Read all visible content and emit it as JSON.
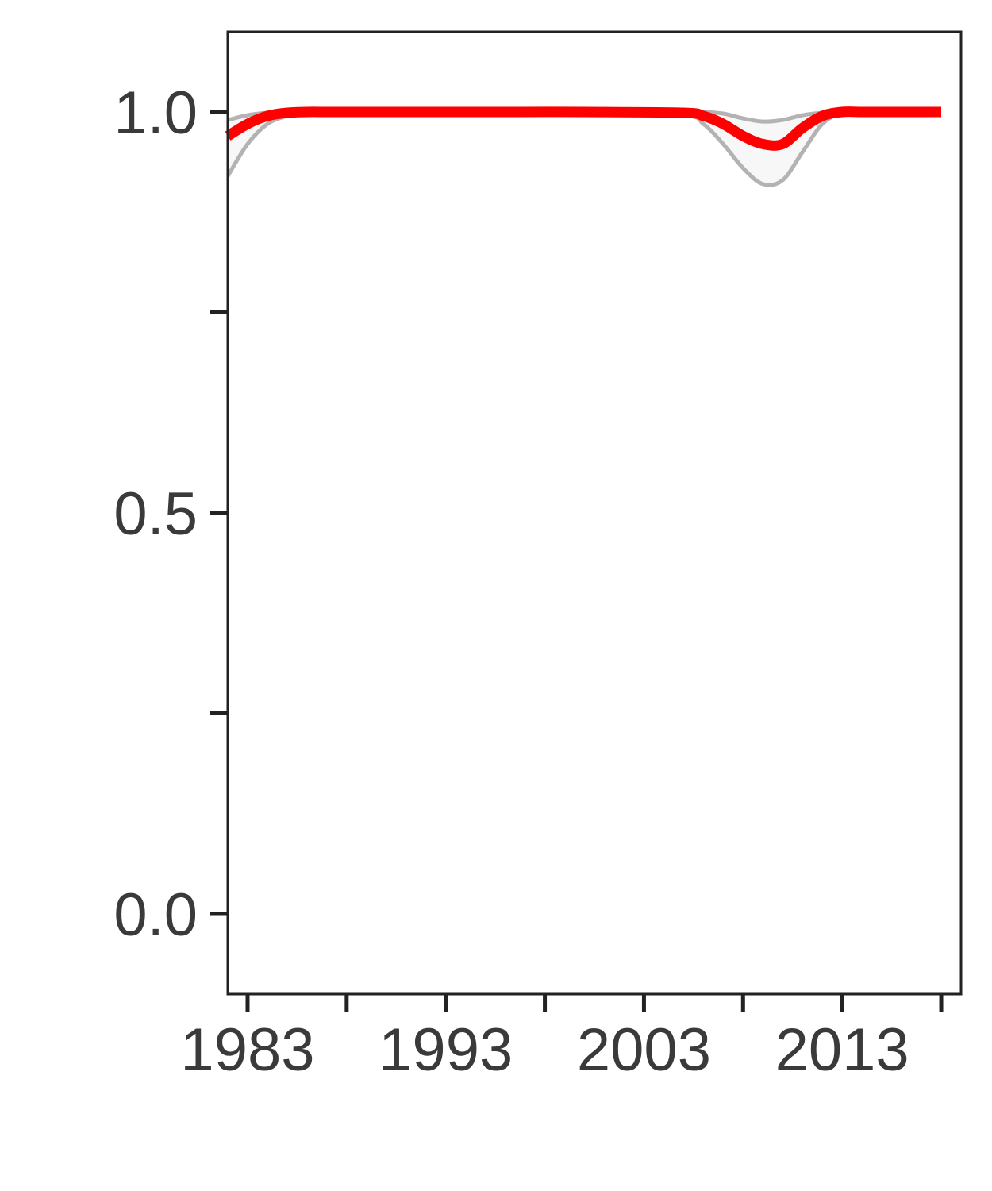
{
  "chart_data": {
    "type": "line",
    "title": "",
    "xlabel": "",
    "ylabel": "",
    "xlim": [
      1982,
      2019
    ],
    "ylim": [
      -0.1,
      1.1
    ],
    "x_ticks": [
      1983,
      1988,
      1993,
      1998,
      2003,
      2008,
      2013,
      2018
    ],
    "x_tick_labels": [
      {
        "value": 1983,
        "label": "1983"
      },
      {
        "value": 1993,
        "label": "1993"
      },
      {
        "value": 2003,
        "label": "2003"
      },
      {
        "value": 2013,
        "label": "2013"
      }
    ],
    "y_ticks": [
      0.0,
      0.25,
      0.5,
      0.75,
      1.0
    ],
    "y_tick_labels": [
      {
        "value": 0.0,
        "label": "0.0"
      },
      {
        "value": 0.5,
        "label": "0.5"
      },
      {
        "value": 1.0,
        "label": "1.0"
      }
    ],
    "grid": false,
    "x": [
      1982,
      1983,
      1984,
      1985,
      1986,
      1987,
      1988,
      1990,
      1995,
      2000,
      2005,
      2006,
      2007,
      2008,
      2009,
      2010,
      2011,
      2012,
      2013,
      2014,
      2016,
      2018
    ],
    "series": [
      {
        "values": [
          0.97,
          0.985,
          0.995,
          0.999,
          1.0,
          1.0,
          1.0,
          1.0,
          1.0,
          1.0,
          0.999,
          0.995,
          0.985,
          0.97,
          0.96,
          0.96,
          0.98,
          0.995,
          1.0,
          1.0,
          1.0,
          1.0
        ],
        "color": "#ff0000"
      }
    ],
    "confidence_band": {
      "lower": [
        0.92,
        0.96,
        0.985,
        0.995,
        0.999,
        1.0,
        1.0,
        1.0,
        1.0,
        1.0,
        0.996,
        0.985,
        0.96,
        0.93,
        0.91,
        0.915,
        0.95,
        0.985,
        0.999,
        1.0,
        1.0,
        1.0
      ],
      "upper": [
        0.99,
        0.996,
        0.999,
        1.0,
        1.0,
        1.0,
        1.0,
        1.0,
        1.0,
        1.0,
        1.0,
        1.0,
        0.998,
        0.992,
        0.988,
        0.99,
        0.996,
        0.999,
        1.0,
        1.0,
        1.0,
        1.0
      ],
      "color": "#b3b3b3",
      "fill": "#f7f7f7"
    }
  }
}
